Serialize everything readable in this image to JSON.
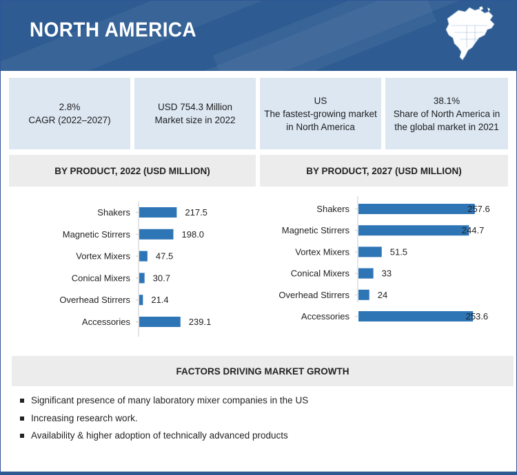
{
  "header": {
    "title": "NORTH AMERICA"
  },
  "stats": [
    {
      "line1": "2.8%",
      "line2": "CAGR (2022–2027)"
    },
    {
      "line1": "USD  754.3  Million",
      "line2": "Market size in 2022"
    },
    {
      "line1": "US",
      "line2": "The fastest-growing market",
      "line3": "in North America"
    },
    {
      "line1": "38.1%",
      "line2": "Share of North America in",
      "line3": "the global market in 2021"
    }
  ],
  "chart_data": [
    {
      "type": "bar",
      "orientation": "horizontal",
      "title": "BY PRODUCT, 2022 (USD MILLION)",
      "categories": [
        "Shakers",
        "Magnetic Stirrers",
        "Vortex Mixers",
        "Conical Mixers",
        "Overhead Stirrers",
        "Accessories"
      ],
      "values": [
        217.5,
        198.0,
        47.5,
        30.7,
        21.4,
        239.1
      ],
      "labels": [
        "217.5",
        "198.0",
        "47.5",
        "30.7",
        "21.4",
        "239.1"
      ],
      "xlim": [
        0,
        600
      ],
      "color": "#2e75b6",
      "grid": false
    },
    {
      "type": "bar",
      "orientation": "horizontal",
      "title": "BY PRODUCT, 2027 (USD MILLION)",
      "categories": [
        "Shakers",
        "Magnetic Stirrers",
        "Vortex Mixers",
        "Conical Mixers",
        "Overhead Stirrers",
        "Accessories"
      ],
      "values": [
        257.6,
        244.7,
        51.5,
        33,
        24,
        253.6
      ],
      "labels": [
        "257.6",
        "244.7",
        "51.5",
        "33",
        "24",
        "253.6"
      ],
      "xlim": [
        0,
        290
      ],
      "color": "#2e75b6",
      "grid": false
    }
  ],
  "factors": {
    "title": "FACTORS DRIVING MARKET GROWTH",
    "items": [
      "Significant presence of many laboratory mixer companies in the US",
      "Increasing research work.",
      "Availability & higher adoption of technically advanced products"
    ]
  },
  "icons": {
    "map": "north-america-map-icon",
    "bullet": "square-bullet-icon"
  },
  "colors": {
    "header": "#2e5c92",
    "stat_bg": "#dce7f2",
    "bar": "#2e75b6",
    "section_bg": "#ececec"
  }
}
